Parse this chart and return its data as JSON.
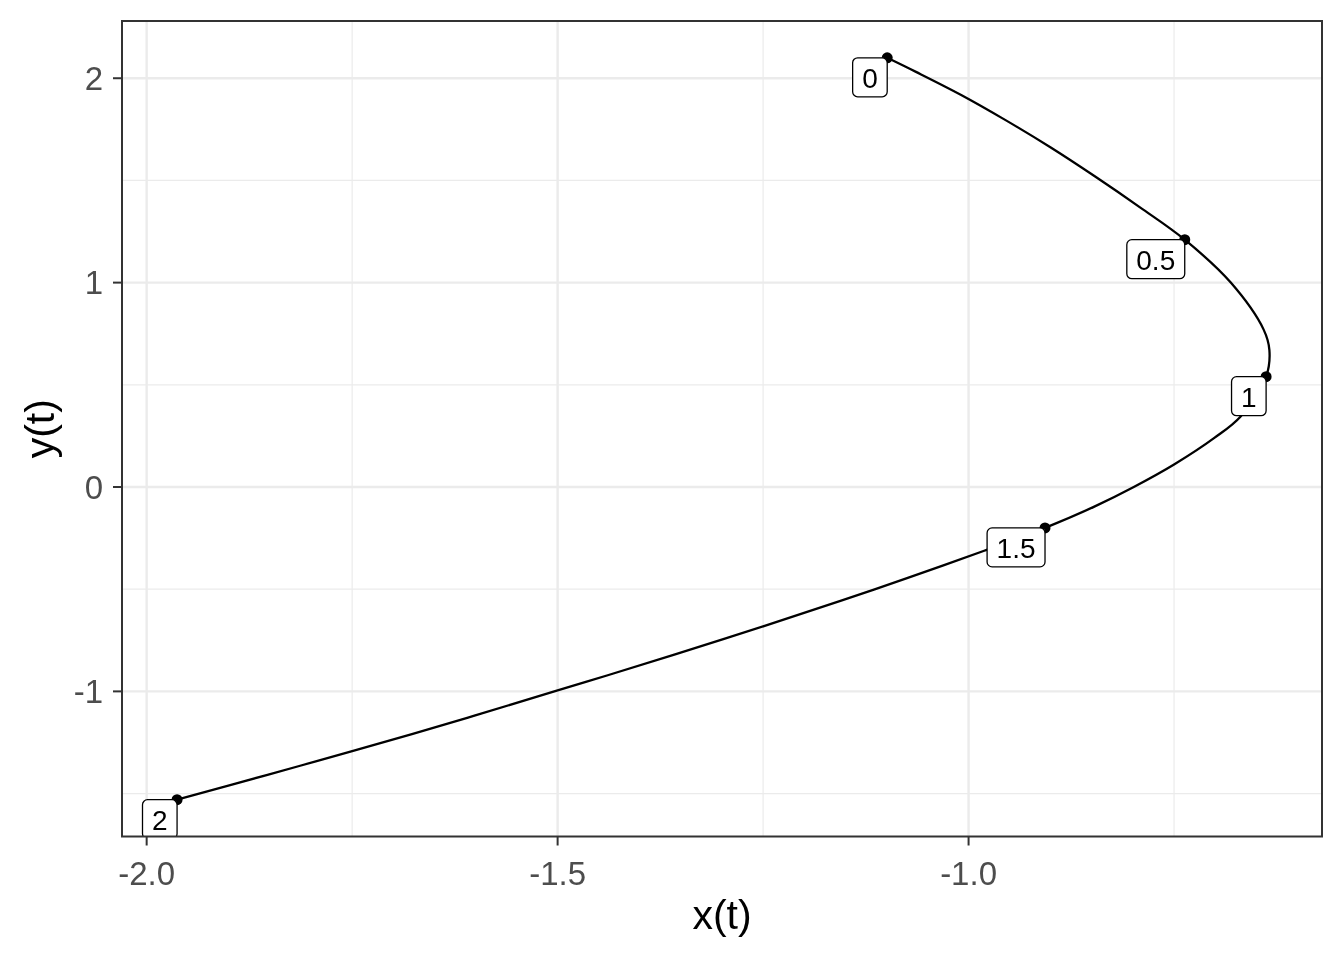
{
  "chart_data": {
    "type": "line",
    "xlabel": "x(t)",
    "ylabel": "y(t)",
    "xlim": [
      -2.03,
      -0.57
    ],
    "ylim": [
      -1.71,
      2.28
    ],
    "xticks": [
      {
        "value": -2,
        "label": "-2.0"
      },
      -1.5,
      {
        "value": -1,
        "label": "-1.0"
      }
    ],
    "yticks": [
      -1,
      0,
      1,
      2
    ],
    "grid": true,
    "series": [
      {
        "color": "#000000",
        "marker": "none",
        "x": [
          -1.099,
          -1.064,
          -1.009,
          -0.955,
          -0.9,
          -0.846,
          -0.791,
          -0.737,
          -0.681,
          -0.641,
          -0.634,
          -0.638,
          -0.669,
          -0.701,
          -0.75,
          -0.799,
          -0.847,
          -0.907,
          -0.981,
          -1.074,
          -1.155,
          -1.249,
          -1.358,
          -1.439,
          -1.5,
          -1.609,
          -1.751,
          -1.853,
          -1.963
        ],
        "values": [
          2.1,
          2.031,
          1.918,
          1.795,
          1.661,
          1.519,
          1.367,
          1.21,
          1.0,
          0.77,
          0.67,
          0.54,
          0.345,
          0.24,
          0.11,
          0.0,
          -0.096,
          -0.2,
          -0.312,
          -0.445,
          -0.556,
          -0.681,
          -0.82,
          -0.921,
          -0.995,
          -1.128,
          -1.294,
          -1.408,
          -1.53
        ]
      },
      {
        "type": "scatter",
        "color": "#000000",
        "marker": "circle",
        "x": [
          -1.099,
          -0.737,
          -0.638,
          -0.907,
          -1.963
        ],
        "values": [
          2.1,
          1.21,
          0.54,
          -0.2,
          -1.53
        ]
      }
    ],
    "annotations": [
      {
        "text": "0",
        "x": -1.099,
        "y": 2.1
      },
      {
        "text": "0.5",
        "x": -0.737,
        "y": 1.21
      },
      {
        "text": "1",
        "x": -0.638,
        "y": 0.54
      },
      {
        "text": "1.5",
        "x": -0.907,
        "y": -0.2
      },
      {
        "text": "2",
        "x": -1.963,
        "y": -1.53
      }
    ]
  }
}
